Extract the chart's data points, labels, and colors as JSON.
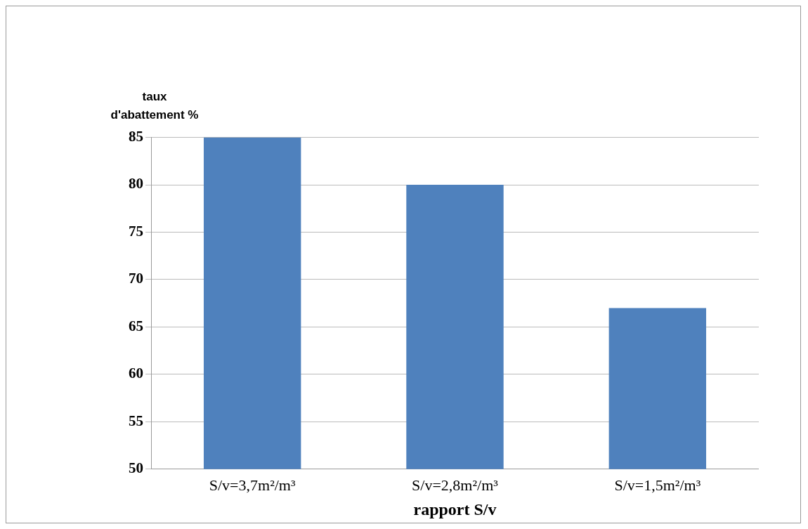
{
  "chart_data": {
    "type": "bar",
    "ylabel": "taux d'abattement %",
    "xlabel": "rapport S/v",
    "categories": [
      "S/v=3,7m²/m³",
      "S/v=2,8m²/m³",
      "S/v=1,5m²/m³"
    ],
    "values": [
      85,
      80,
      67
    ],
    "color": "#4f81bd",
    "ylim": [
      50,
      85
    ],
    "yticks": [
      50,
      55,
      60,
      65,
      70,
      75,
      80,
      85
    ],
    "grid": "y",
    "legend": false
  }
}
